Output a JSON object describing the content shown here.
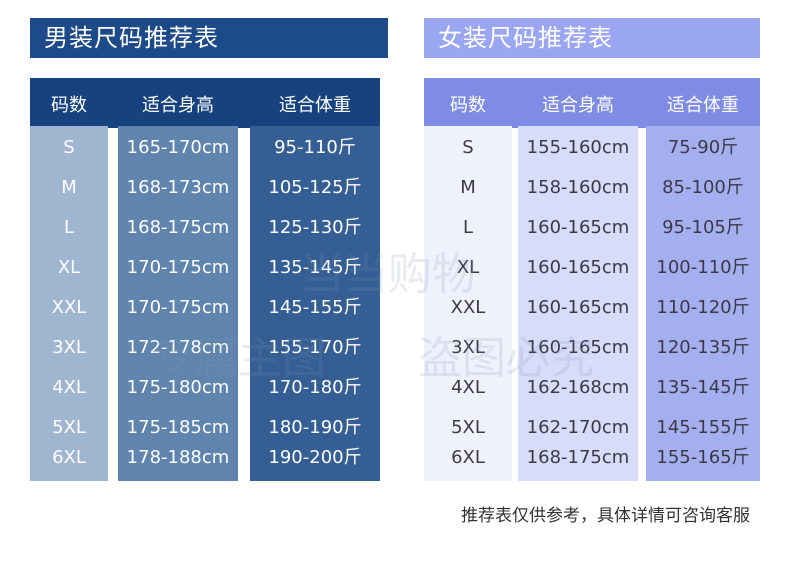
{
  "men": {
    "title": "男装尺码推荐表",
    "headers": [
      "码数",
      "适合身高",
      "适合体重"
    ],
    "rows": [
      [
        "S",
        "165-170cm",
        "95-110斤"
      ],
      [
        "M",
        "168-173cm",
        "105-125斤"
      ],
      [
        "L",
        "168-175cm",
        "125-130斤"
      ],
      [
        "XL",
        "170-175cm",
        "135-145斤"
      ],
      [
        "XXL",
        "170-175cm",
        "145-155斤"
      ],
      [
        "3XL",
        "172-178cm",
        "155-170斤"
      ],
      [
        "4XL",
        "175-180cm",
        "170-180斤"
      ],
      [
        "5XL",
        "175-185cm",
        "180-190斤"
      ],
      [
        "6XL",
        "178-188cm",
        "190-200斤"
      ]
    ]
  },
  "women": {
    "title": "女装尺码推荐表",
    "headers": [
      "码数",
      "适合身高",
      "适合体重"
    ],
    "rows": [
      [
        "S",
        "155-160cm",
        "75-90斤"
      ],
      [
        "M",
        "158-160cm",
        "85-100斤"
      ],
      [
        "L",
        "160-165cm",
        "95-105斤"
      ],
      [
        "XL",
        "160-165cm",
        "100-110斤"
      ],
      [
        "XXL",
        "160-165cm",
        "110-120斤"
      ],
      [
        "3XL",
        "160-165cm",
        "120-135斤"
      ],
      [
        "4XL",
        "162-168cm",
        "135-145斤"
      ],
      [
        "5XL",
        "162-170cm",
        "145-155斤"
      ],
      [
        "6XL",
        "168-175cm",
        "155-165斤"
      ]
    ]
  },
  "note": "推荐表仅供参考，具体详情可咨询客服",
  "watermark": {
    "line1": "当当购物",
    "line2": "专属主图",
    "line3": "盗图必究"
  }
}
